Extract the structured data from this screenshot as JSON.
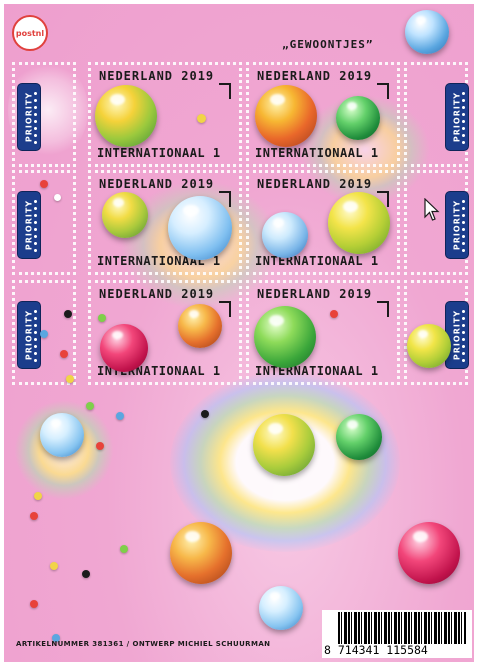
{
  "logo": {
    "text": "postnl"
  },
  "title": "„GEWOONTJES”",
  "priority_label": "PRIORITY",
  "stamps": [
    {
      "country": "NEDERLAND 2019",
      "value": "INTERNATIONAAL 1"
    },
    {
      "country": "NEDERLAND 2019",
      "value": "INTERNATIONAAL 1"
    },
    {
      "country": "NEDERLAND 2019",
      "value": "INTERNATIONAAL 1"
    },
    {
      "country": "NEDERLAND 2019",
      "value": "INTERNATIONAAL 1"
    },
    {
      "country": "NEDERLAND 2019",
      "value": "INTERNATIONAAL 1"
    },
    {
      "country": "NEDERLAND 2019",
      "value": "INTERNATIONAAL 1"
    }
  ],
  "footer": {
    "text": "ARTIKELNUMMER 381361 / ONTWERP MICHIEL SCHUURMAN"
  },
  "barcode": {
    "number": "8 714341 115584"
  },
  "colors": {
    "background": "#f0a7d2",
    "priority_blue": "#1c3d8c",
    "text": "#1b1b1b"
  }
}
